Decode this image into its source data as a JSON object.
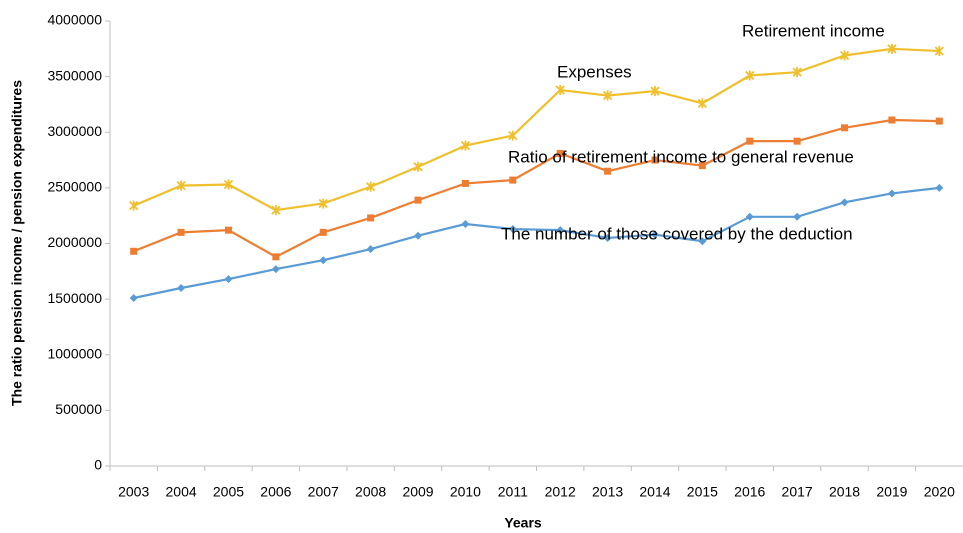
{
  "chart_data": {
    "type": "line",
    "xlabel": "Years",
    "ylabel": "The ratio pension income / pension expenditures",
    "annotations": [
      "Retirement income",
      "Expenses",
      "Ratio of retirement income to general revenue",
      "The number of those covered by the deduction"
    ],
    "categories": [
      "2003",
      "2004",
      "2005",
      "2006",
      "2007",
      "2008",
      "2009",
      "2010",
      "2011",
      "2012",
      "2013",
      "2014",
      "2015",
      "2016",
      "2017",
      "2018",
      "2019",
      "2020"
    ],
    "series": [
      {
        "color": "#5b9bd5",
        "marker": "diamond",
        "values": [
          1510000,
          1600000,
          1680000,
          1770000,
          1850000,
          1950000,
          2070000,
          2175000,
          2130000,
          2120000,
          2050000,
          2080000,
          2020000,
          2240000,
          2240000,
          2370000,
          2450000,
          2500000
        ]
      },
      {
        "color": "#ed7d31",
        "marker": "square",
        "values": [
          1930000,
          2100000,
          2120000,
          1880000,
          2100000,
          2230000,
          2390000,
          2540000,
          2570000,
          2810000,
          2650000,
          2750000,
          2700000,
          2920000,
          2920000,
          3040000,
          3110000,
          3100000
        ]
      },
      {
        "color": "#f0bf2c",
        "marker": "star",
        "values": [
          2340000,
          2520000,
          2530000,
          2300000,
          2360000,
          2510000,
          2690000,
          2880000,
          2970000,
          3380000,
          3330000,
          3370000,
          3260000,
          3510000,
          3540000,
          3690000,
          3750000,
          3730000
        ]
      }
    ],
    "ylim": [
      0,
      4000000
    ],
    "yticks": [
      0,
      500000,
      1000000,
      1500000,
      2000000,
      2500000,
      3000000,
      3500000,
      4000000
    ],
    "grid": false
  }
}
